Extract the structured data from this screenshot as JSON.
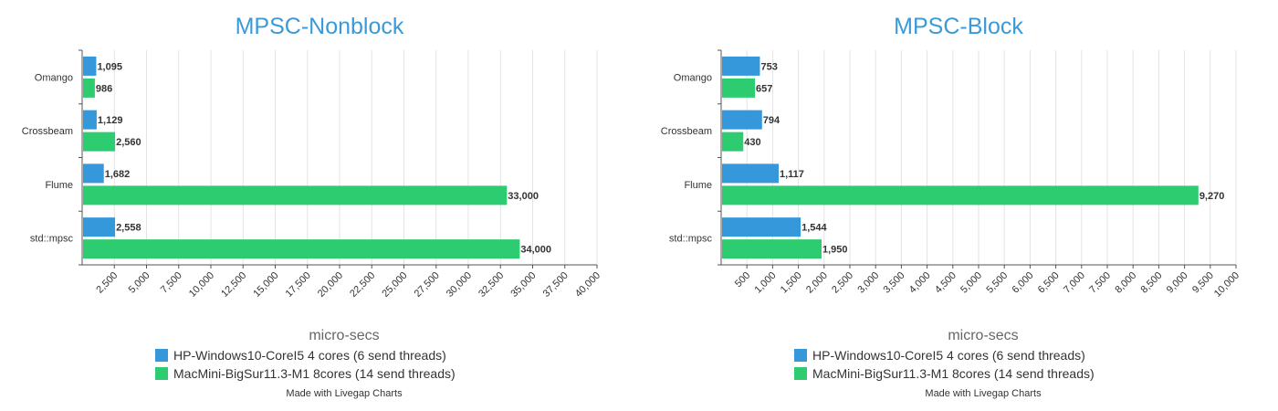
{
  "colors": {
    "series_a": "#3498db",
    "series_b": "#2ecc71",
    "title": "#3a9ad9",
    "axis": "#555555",
    "grid": "#e3e3e3",
    "text": "#333333"
  },
  "footer": "Made with Livegap Charts",
  "chart_data": [
    {
      "type": "bar",
      "orientation": "horizontal",
      "title": "MPSC-Nonblock",
      "xlabel": "micro-secs",
      "ylabel": "",
      "categories": [
        "Omango",
        "Crossbeam",
        "Flume",
        "std::mpsc"
      ],
      "series": [
        {
          "name": "HP-Windows10-CoreI5 4 cores (6 send threads)",
          "values": [
            1095,
            1129,
            1682,
            2558
          ],
          "labels": [
            "1,095",
            "1,129",
            "1,682",
            "2,558"
          ]
        },
        {
          "name": "MacMini-BigSur11.3-M1 8cores (14 send threads)",
          "values": [
            986,
            2560,
            33000,
            34000
          ],
          "labels": [
            "986",
            "2,560",
            "33,000",
            "34,000"
          ]
        }
      ],
      "xlim": [
        0,
        40000
      ],
      "xticks": [
        2500,
        5000,
        7500,
        10000,
        12500,
        15000,
        17500,
        20000,
        22500,
        25000,
        27500,
        30000,
        32500,
        35000,
        37500,
        40000
      ],
      "xtick_labels": [
        "2,500",
        "5,000",
        "7,500",
        "10,000",
        "12,500",
        "15,000",
        "17,500",
        "20,000",
        "22,500",
        "25,000",
        "27,500",
        "30,000",
        "32,500",
        "35,000",
        "37,500",
        "40,000"
      ],
      "grid": true,
      "legend": "bottom"
    },
    {
      "type": "bar",
      "orientation": "horizontal",
      "title": "MPSC-Block",
      "xlabel": "micro-secs",
      "ylabel": "",
      "categories": [
        "Omango",
        "Crossbeam",
        "Flume",
        "std::mpsc"
      ],
      "series": [
        {
          "name": "HP-Windows10-CoreI5 4 cores (6 send threads)",
          "values": [
            753,
            794,
            1117,
            1544
          ],
          "labels": [
            "753",
            "794",
            "1,117",
            "1,544"
          ]
        },
        {
          "name": "MacMini-BigSur11.3-M1 8cores (14 send threads)",
          "values": [
            657,
            430,
            9270,
            1950
          ],
          "labels": [
            "657",
            "430",
            "9,270",
            "1,950"
          ]
        }
      ],
      "xlim": [
        0,
        10000
      ],
      "xticks": [
        500,
        1000,
        1500,
        2000,
        2500,
        3000,
        3500,
        4000,
        4500,
        5000,
        5500,
        6000,
        6500,
        7000,
        7500,
        8000,
        8500,
        9000,
        9500,
        10000
      ],
      "xtick_labels": [
        "500",
        "1,000",
        "1,500",
        "2,000",
        "2,500",
        "3,000",
        "3,500",
        "4,000",
        "4,500",
        "5,000",
        "5,500",
        "6,000",
        "6,500",
        "7,000",
        "7,500",
        "8,000",
        "8,500",
        "9,000",
        "9,500",
        "10,000"
      ],
      "grid": true,
      "legend": "bottom"
    }
  ]
}
